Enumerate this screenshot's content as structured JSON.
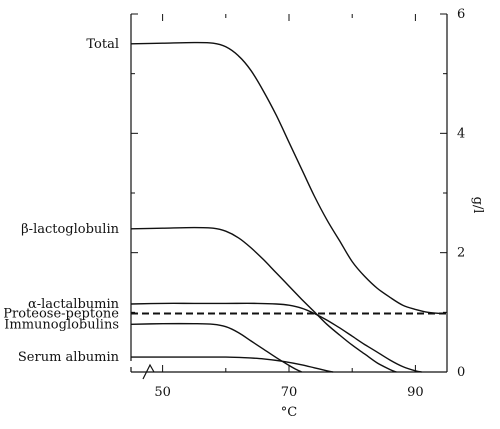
{
  "chart_data": {
    "type": "line",
    "title": "",
    "xlabel": "°C",
    "ylabel": "g/l",
    "xlim": [
      45,
      95
    ],
    "ylim": [
      0,
      6
    ],
    "x_ticks": [
      50,
      70,
      90
    ],
    "x_tick_labels": [
      "50",
      "70",
      "90"
    ],
    "y_ticks": [
      0,
      2,
      4,
      6
    ],
    "y_tick_labels": [
      "0",
      "2",
      "4",
      "6"
    ],
    "axis_break": true,
    "grid": false,
    "legend": "none",
    "series": [
      {
        "name": "Total",
        "style": "solid",
        "points": [
          [
            45,
            5.5
          ],
          [
            50,
            5.51
          ],
          [
            55,
            5.52
          ],
          [
            58,
            5.51
          ],
          [
            60,
            5.45
          ],
          [
            62,
            5.3
          ],
          [
            64,
            5.05
          ],
          [
            66,
            4.7
          ],
          [
            68,
            4.3
          ],
          [
            70,
            3.85
          ],
          [
            72,
            3.4
          ],
          [
            74,
            2.95
          ],
          [
            76,
            2.55
          ],
          [
            78,
            2.2
          ],
          [
            80,
            1.85
          ],
          [
            82,
            1.6
          ],
          [
            84,
            1.4
          ],
          [
            86,
            1.25
          ],
          [
            88,
            1.12
          ],
          [
            90,
            1.05
          ],
          [
            92,
            1.0
          ],
          [
            94,
            0.98
          ]
        ]
      },
      {
        "name": "β-lactoglobulin",
        "style": "solid",
        "points": [
          [
            45,
            2.4
          ],
          [
            50,
            2.41
          ],
          [
            55,
            2.42
          ],
          [
            58,
            2.41
          ],
          [
            60,
            2.36
          ],
          [
            62,
            2.25
          ],
          [
            64,
            2.08
          ],
          [
            66,
            1.88
          ],
          [
            68,
            1.66
          ],
          [
            70,
            1.44
          ],
          [
            72,
            1.22
          ],
          [
            74,
            1.01
          ],
          [
            76,
            0.8
          ],
          [
            78,
            0.62
          ],
          [
            80,
            0.45
          ],
          [
            82,
            0.3
          ],
          [
            84,
            0.15
          ],
          [
            86,
            0.04
          ],
          [
            87,
            0.0
          ]
        ]
      },
      {
        "name": "α-lactalbumin",
        "style": "solid",
        "points": [
          [
            45,
            1.14
          ],
          [
            50,
            1.15
          ],
          [
            55,
            1.15
          ],
          [
            60,
            1.15
          ],
          [
            65,
            1.15
          ],
          [
            68,
            1.14
          ],
          [
            70,
            1.12
          ],
          [
            72,
            1.07
          ],
          [
            74,
            0.98
          ],
          [
            76,
            0.87
          ],
          [
            78,
            0.74
          ],
          [
            80,
            0.6
          ],
          [
            82,
            0.46
          ],
          [
            84,
            0.33
          ],
          [
            86,
            0.2
          ],
          [
            88,
            0.09
          ],
          [
            90,
            0.02
          ],
          [
            91,
            0.0
          ]
        ]
      },
      {
        "name": "Proteose-peptone",
        "style": "dashed",
        "points": [
          [
            45,
            0.98
          ],
          [
            95,
            0.98
          ]
        ]
      },
      {
        "name": "Immunoglobulins",
        "style": "solid",
        "points": [
          [
            45,
            0.8
          ],
          [
            50,
            0.81
          ],
          [
            55,
            0.81
          ],
          [
            58,
            0.8
          ],
          [
            60,
            0.76
          ],
          [
            62,
            0.66
          ],
          [
            64,
            0.52
          ],
          [
            66,
            0.38
          ],
          [
            68,
            0.24
          ],
          [
            70,
            0.11
          ],
          [
            71,
            0.05
          ],
          [
            72,
            0.0
          ]
        ]
      },
      {
        "name": "Serum albumin",
        "style": "solid",
        "points": [
          [
            45,
            0.25
          ],
          [
            50,
            0.25
          ],
          [
            55,
            0.25
          ],
          [
            60,
            0.25
          ],
          [
            63,
            0.24
          ],
          [
            66,
            0.22
          ],
          [
            69,
            0.18
          ],
          [
            72,
            0.12
          ],
          [
            74,
            0.07
          ],
          [
            76,
            0.02
          ],
          [
            77,
            0.0
          ]
        ]
      }
    ]
  }
}
